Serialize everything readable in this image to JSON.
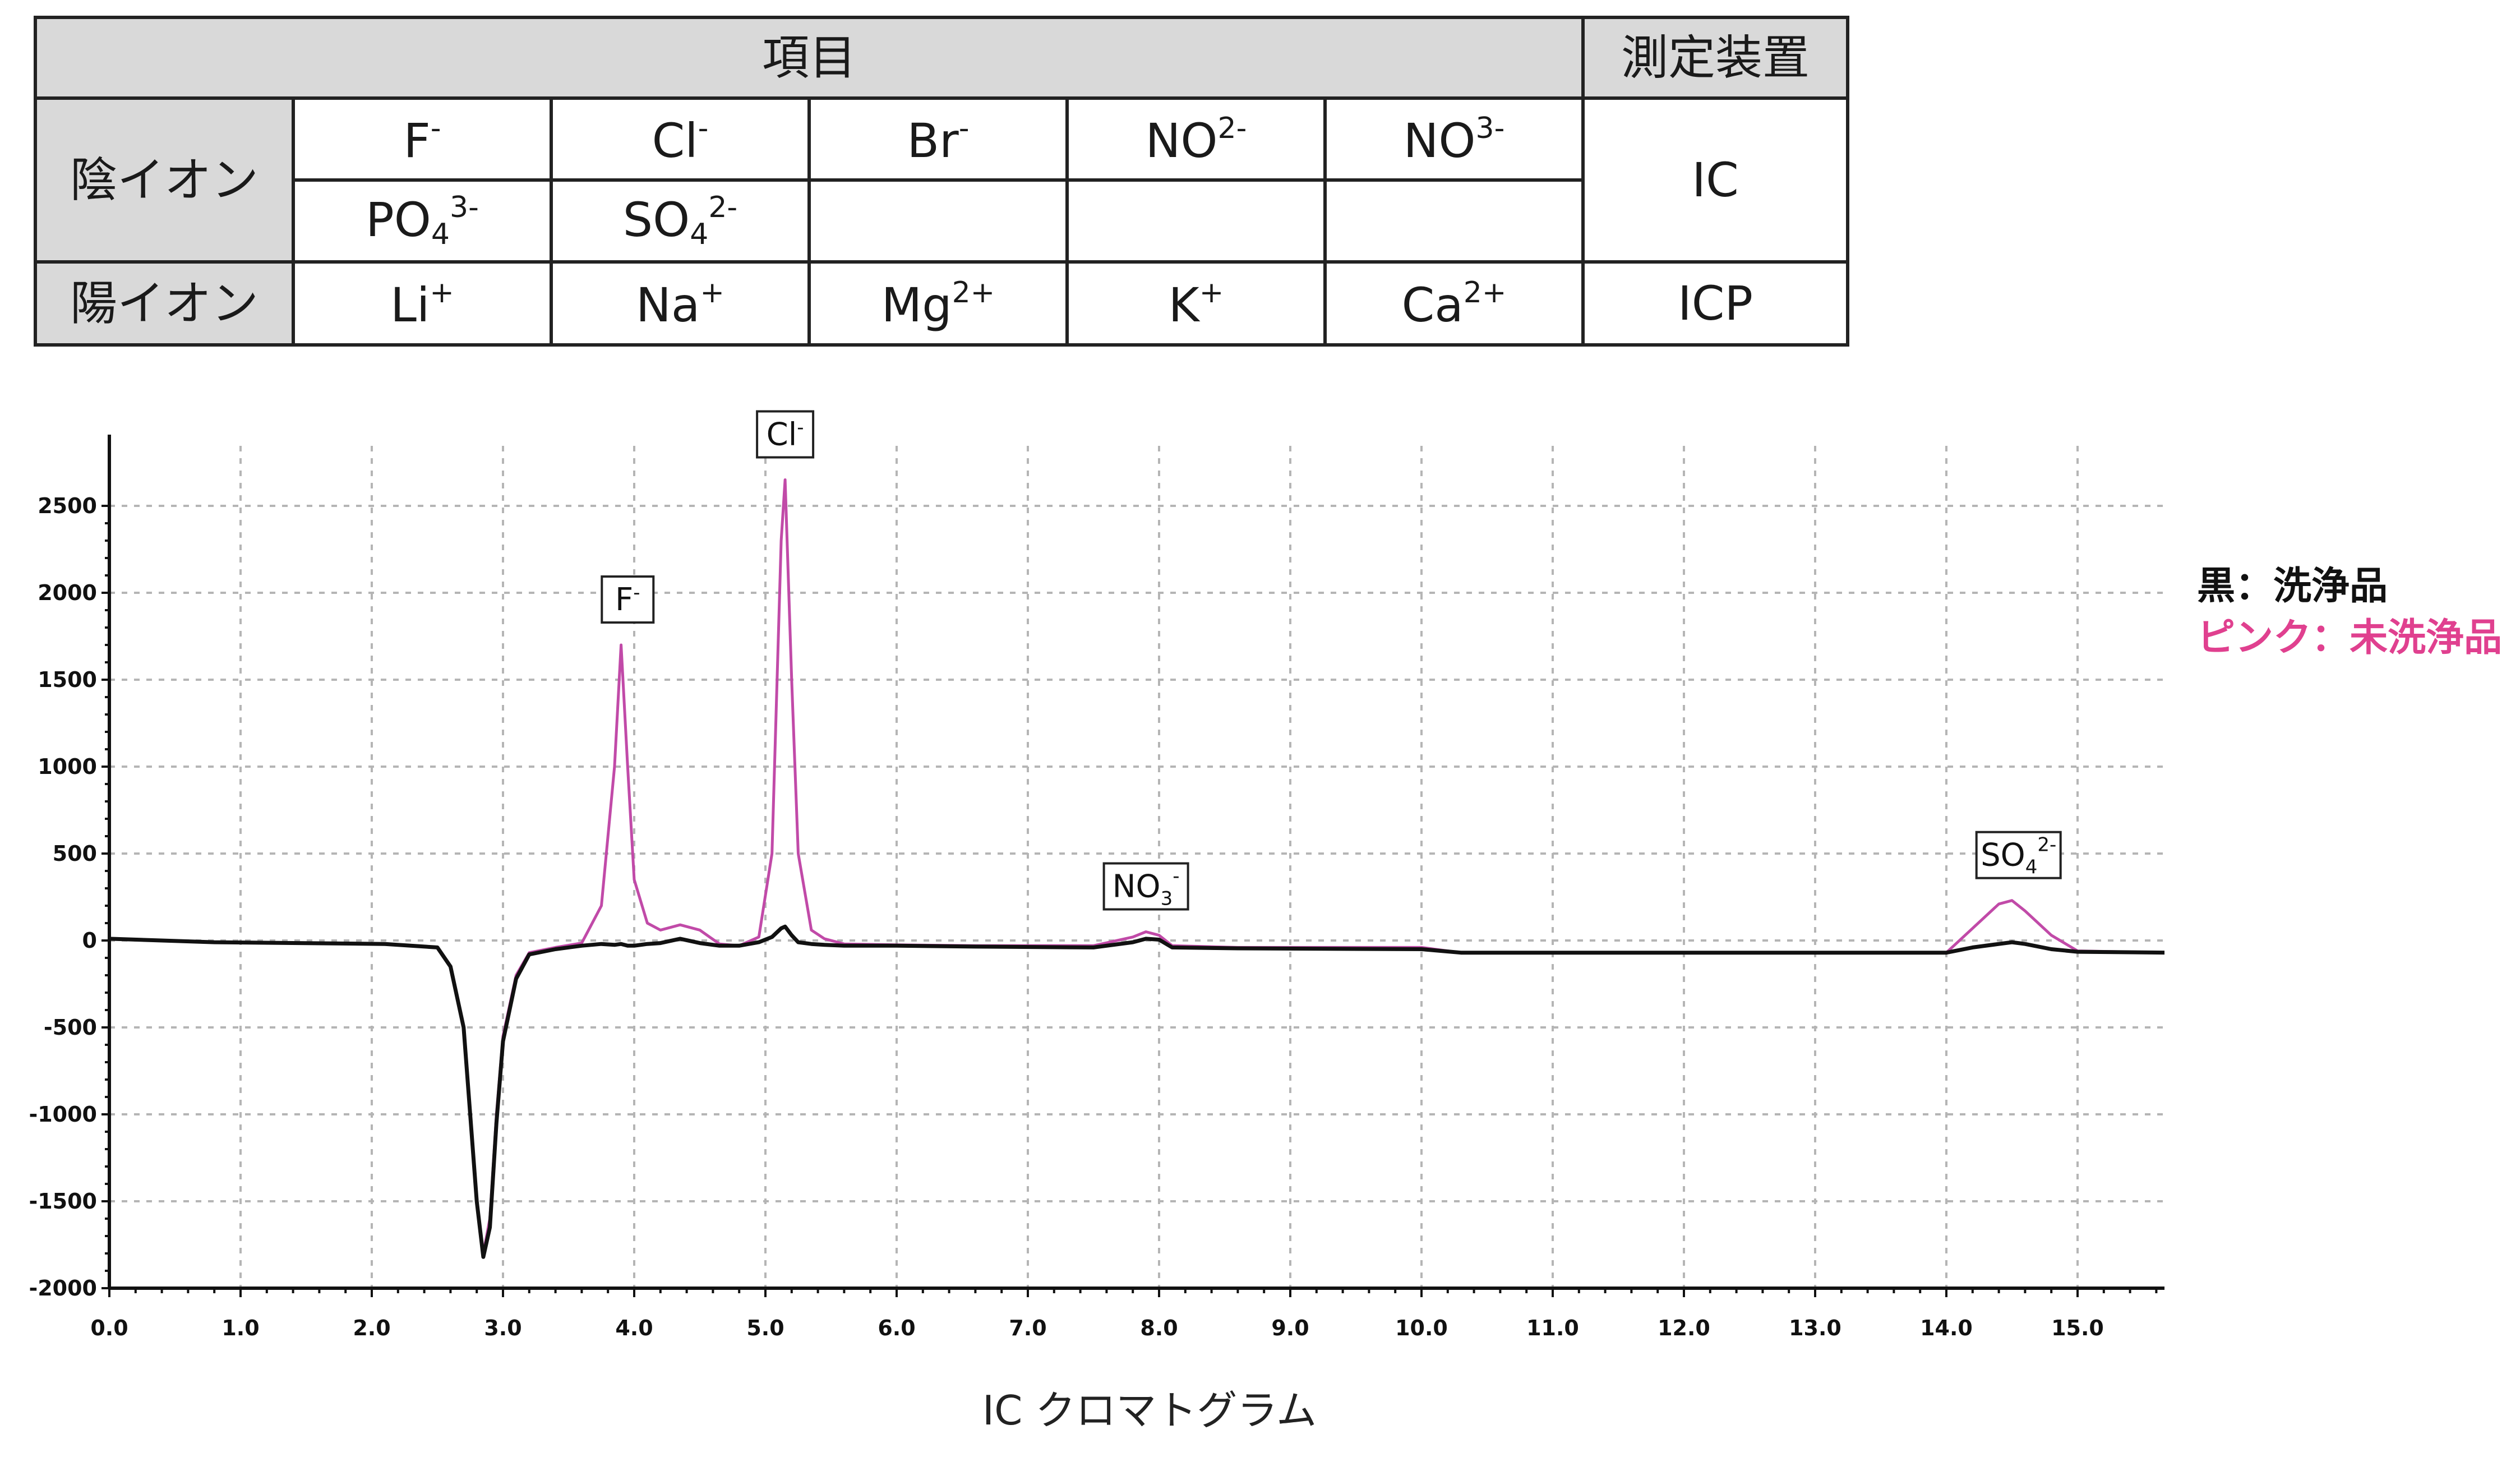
{
  "table": {
    "header_item": "項目",
    "header_device": "測定装置",
    "anion_label": "陰イオン",
    "cation_label": "陽イオン",
    "anions_row1": [
      {
        "base": "F",
        "sup": "-"
      },
      {
        "base": "Cl",
        "sup": "-"
      },
      {
        "base": "Br",
        "sup": "-"
      },
      {
        "base": "NO",
        "sup": "2-"
      },
      {
        "base": "NO",
        "sup": "3-"
      }
    ],
    "anions_row2": [
      {
        "base": "PO",
        "sub": "4",
        "sup": "3-"
      },
      {
        "base": "SO",
        "sub": "4",
        "sup": "2-"
      },
      {
        "base": ""
      },
      {
        "base": ""
      },
      {
        "base": ""
      }
    ],
    "cations": [
      {
        "base": "Li",
        "sup": "+"
      },
      {
        "base": "Na",
        "sup": "+"
      },
      {
        "base": "Mg",
        "sup": "2+"
      },
      {
        "base": "K",
        "sup": "+"
      },
      {
        "base": "Ca",
        "sup": "2+"
      }
    ],
    "anion_device": "IC",
    "cation_device": "ICP"
  },
  "legend": {
    "black": "黒：洗浄品",
    "pink": "ピンク：未洗浄品"
  },
  "colors": {
    "washed": "#111111",
    "unwashed": "#c14aa8",
    "legend_pink": "#e0408f",
    "header_bg": "#d9d9d9"
  },
  "chart_data": {
    "type": "line",
    "title": "",
    "xlabel": "IC クロマトグラム",
    "ylabel": "",
    "xlim": [
      0.0,
      15.7
    ],
    "ylim": [
      -2000,
      2700
    ],
    "x_ticks": [
      "0.0",
      "1.0",
      "2.0",
      "3.0",
      "4.0",
      "5.0",
      "6.0",
      "7.0",
      "8.0",
      "9.0",
      "10.0",
      "11.0",
      "12.0",
      "13.0",
      "14.0",
      "15.0"
    ],
    "y_ticks": [
      "2500",
      "2000",
      "1500",
      "1000",
      "500",
      "0",
      "-500",
      "-1000",
      "-1500",
      "-2000"
    ],
    "grid": true,
    "series": [
      {
        "name": "未洗浄品",
        "color": "#c14aa8",
        "x": [
          0.0,
          0.8,
          2.1,
          2.5,
          2.6,
          2.7,
          2.75,
          2.8,
          2.85,
          2.9,
          2.95,
          3.0,
          3.1,
          3.2,
          3.4,
          3.6,
          3.75,
          3.85,
          3.9,
          3.95,
          4.0,
          4.1,
          4.2,
          4.35,
          4.5,
          4.65,
          4.8,
          4.95,
          5.05,
          5.12,
          5.15,
          5.2,
          5.25,
          5.35,
          5.45,
          5.6,
          6.0,
          6.6,
          7.5,
          7.8,
          7.9,
          8.0,
          8.1,
          8.6,
          10.0,
          10.3,
          12.0,
          13.5,
          14.0,
          14.2,
          14.4,
          14.5,
          14.6,
          14.8,
          15.0,
          15.7
        ],
        "y": [
          10,
          -10,
          -20,
          -40,
          -150,
          -500,
          -1000,
          -1500,
          -1800,
          -1600,
          -1000,
          -550,
          -200,
          -70,
          -40,
          -15,
          200,
          1000,
          1700,
          1000,
          350,
          100,
          60,
          90,
          60,
          -20,
          -30,
          20,
          500,
          2300,
          2650,
          1500,
          500,
          60,
          10,
          -20,
          -25,
          -30,
          -30,
          20,
          50,
          30,
          -30,
          -40,
          -40,
          -70,
          -70,
          -70,
          -70,
          70,
          210,
          230,
          170,
          30,
          -60,
          -70
        ]
      },
      {
        "name": "洗浄品",
        "color": "#111111",
        "x": [
          0.0,
          0.8,
          2.1,
          2.5,
          2.6,
          2.7,
          2.75,
          2.8,
          2.85,
          2.9,
          2.95,
          3.0,
          3.1,
          3.2,
          3.4,
          3.6,
          3.75,
          3.85,
          3.9,
          3.95,
          4.0,
          4.1,
          4.2,
          4.35,
          4.5,
          4.65,
          4.8,
          4.95,
          5.05,
          5.12,
          5.15,
          5.2,
          5.25,
          5.35,
          5.45,
          5.6,
          6.0,
          6.6,
          7.5,
          7.8,
          7.9,
          8.0,
          8.1,
          8.6,
          10.0,
          10.3,
          12.0,
          13.5,
          14.0,
          14.2,
          14.4,
          14.5,
          14.6,
          14.8,
          15.0,
          15.7
        ],
        "y": [
          10,
          -10,
          -20,
          -40,
          -150,
          -500,
          -1000,
          -1500,
          -1820,
          -1650,
          -1050,
          -580,
          -220,
          -80,
          -50,
          -30,
          -20,
          -25,
          -20,
          -30,
          -30,
          -20,
          -15,
          10,
          -15,
          -30,
          -30,
          -10,
          20,
          70,
          80,
          30,
          -10,
          -20,
          -25,
          -30,
          -30,
          -35,
          -40,
          -10,
          10,
          5,
          -40,
          -45,
          -50,
          -70,
          -70,
          -70,
          -70,
          -40,
          -20,
          -10,
          -20,
          -50,
          -65,
          -70
        ]
      }
    ],
    "annotations": [
      {
        "label": "F",
        "sup": "-",
        "x": 3.95
      },
      {
        "label": "Cl",
        "sup": "-",
        "x": 5.15
      },
      {
        "label": "NO",
        "sub": "3",
        "sup": "-",
        "x": 7.9
      },
      {
        "label": "SO",
        "sub": "4",
        "sup": "2-",
        "x": 14.55
      }
    ]
  }
}
